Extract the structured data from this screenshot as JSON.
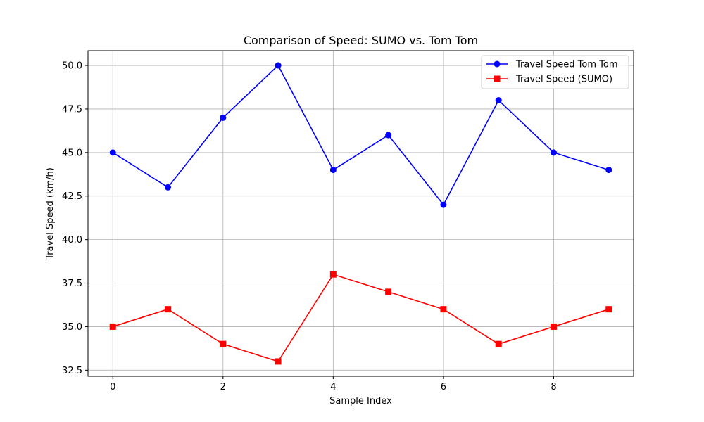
{
  "chart_data": {
    "type": "line",
    "title": "Comparison of Speed: SUMO vs. Tom Tom",
    "xlabel": "Sample Index",
    "ylabel": "Travel Speed (km/h)",
    "x": [
      0,
      1,
      2,
      3,
      4,
      5,
      6,
      7,
      8,
      9
    ],
    "xlim": [
      -0.45,
      9.45
    ],
    "ylim": [
      32.15,
      50.85
    ],
    "xticks": [
      0,
      2,
      4,
      6,
      8
    ],
    "xtick_labels": [
      "0",
      "2",
      "4",
      "6",
      "8"
    ],
    "yticks": [
      32.5,
      35.0,
      37.5,
      40.0,
      42.5,
      45.0,
      47.5,
      50.0
    ],
    "ytick_labels": [
      "32.5",
      "35.0",
      "37.5",
      "40.0",
      "42.5",
      "45.0",
      "47.5",
      "50.0"
    ],
    "grid": true,
    "legend_position": "top-right",
    "series": [
      {
        "name": "Travel Speed Tom Tom",
        "color": "#0000ff",
        "marker": "circle",
        "values": [
          45,
          43,
          47,
          50,
          44,
          46,
          42,
          48,
          45,
          44
        ]
      },
      {
        "name": "Travel Speed (SUMO)",
        "color": "#ff0000",
        "marker": "square",
        "values": [
          35,
          36,
          34,
          33,
          38,
          37,
          36,
          34,
          35,
          36
        ]
      }
    ]
  }
}
